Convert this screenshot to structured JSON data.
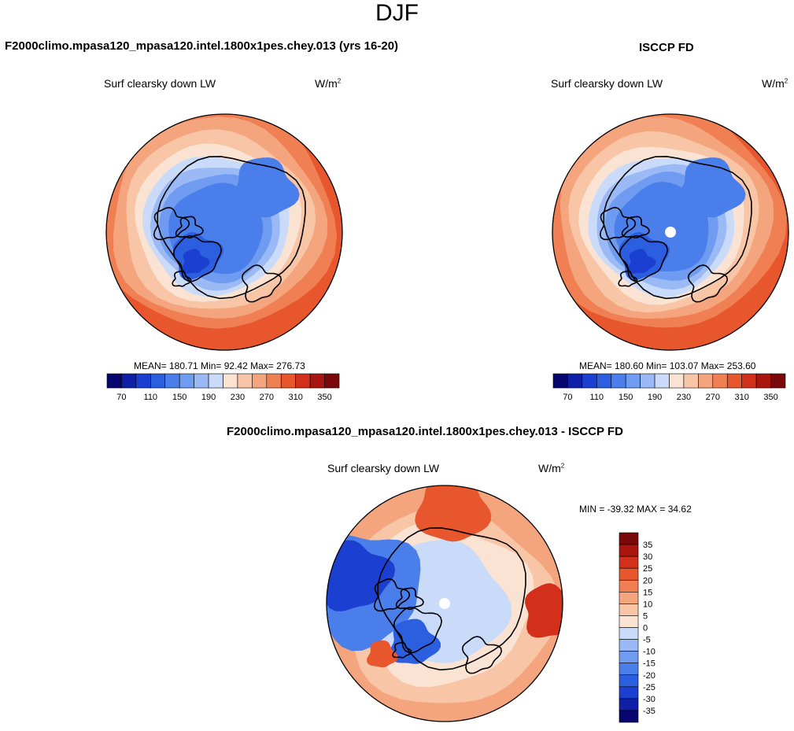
{
  "page": {
    "season": "DJF"
  },
  "panels": [
    {
      "id": "model",
      "title": "F2000climo.mpasa120_mpasa120.intel.1800x1pes.chey.013 (yrs 16-20)",
      "variable": "Surf clearsky down LW",
      "units_base": "W/m",
      "units_exp": "2",
      "stats_text": "MEAN= 180.71  Min=  92.42  Max= 276.73",
      "stats": {
        "mean": 180.71,
        "min": 92.42,
        "max": 276.73
      }
    },
    {
      "id": "obs",
      "title": "ISCCP FD",
      "variable": "Surf clearsky down LW",
      "units_base": "W/m",
      "units_exp": "2",
      "stats_text": "MEAN= 180.60  Min= 103.07  Max= 253.60",
      "stats": {
        "mean": 180.6,
        "min": 103.07,
        "max": 253.6
      }
    },
    {
      "id": "diff",
      "title": "F2000climo.mpasa120_mpasa120.intel.1800x1pes.chey.013 - ISCCP FD",
      "variable": "Surf clearsky down LW",
      "units_base": "W/m",
      "units_exp": "2",
      "stats_text": "MIN = -39.32 MAX =  34.62",
      "stats": {
        "min": -39.32,
        "max": 34.62
      }
    }
  ],
  "chart_data": [
    {
      "type": "heatmap",
      "projection": "north-polar-stereographic",
      "title": "F2000climo.mpasa120_mpasa120.intel.1800x1pes.chey.013 (yrs 16-20)",
      "variable": "Surf clearsky down LW",
      "units": "W/m2",
      "mean": 180.71,
      "min": 92.42,
      "max": 276.73,
      "colorbar": {
        "orientation": "horizontal",
        "levels": [
          70,
          90,
          110,
          130,
          150,
          170,
          190,
          210,
          230,
          250,
          270,
          290,
          310,
          330,
          350
        ],
        "tick_labels": [
          "70",
          "110",
          "150",
          "190",
          "230",
          "270",
          "310",
          "350"
        ],
        "colors": [
          "#06066e",
          "#0f1fa8",
          "#1b3fd0",
          "#2c5ee0",
          "#4a7eea",
          "#6f9cf0",
          "#9bbaf5",
          "#c9dbf9",
          "#fbe3d4",
          "#f8c6a7",
          "#f5a57e",
          "#f07f54",
          "#e8562e",
          "#d2301a",
          "#a9150f",
          "#7a0808"
        ]
      }
    },
    {
      "type": "heatmap",
      "projection": "north-polar-stereographic",
      "title": "ISCCP FD",
      "variable": "Surf clearsky down LW",
      "units": "W/m2",
      "mean": 180.6,
      "min": 103.07,
      "max": 253.6,
      "colorbar": {
        "orientation": "horizontal",
        "levels": [
          70,
          90,
          110,
          130,
          150,
          170,
          190,
          210,
          230,
          250,
          270,
          290,
          310,
          330,
          350
        ],
        "tick_labels": [
          "70",
          "110",
          "150",
          "190",
          "230",
          "270",
          "310",
          "350"
        ],
        "colors": [
          "#06066e",
          "#0f1fa8",
          "#1b3fd0",
          "#2c5ee0",
          "#4a7eea",
          "#6f9cf0",
          "#9bbaf5",
          "#c9dbf9",
          "#fbe3d4",
          "#f8c6a7",
          "#f5a57e",
          "#f07f54",
          "#e8562e",
          "#d2301a",
          "#a9150f",
          "#7a0808"
        ]
      }
    },
    {
      "type": "heatmap",
      "projection": "north-polar-stereographic",
      "title": "F2000climo.mpasa120_mpasa120.intel.1800x1pes.chey.013 - ISCCP FD",
      "variable": "Surf clearsky down LW",
      "units": "W/m2",
      "min": -39.32,
      "max": 34.62,
      "colorbar": {
        "orientation": "vertical",
        "levels": [
          35,
          30,
          25,
          20,
          15,
          10,
          5,
          0,
          -5,
          -10,
          -15,
          -20,
          -25,
          -30,
          -35
        ],
        "tick_labels": [
          "35",
          "30",
          "25",
          "20",
          "15",
          "10",
          "5",
          "0",
          "-5",
          "-10",
          "-15",
          "-20",
          "-25",
          "-30",
          "-35"
        ],
        "colors": [
          "#7a0808",
          "#a9150f",
          "#d2301a",
          "#e8562e",
          "#f07f54",
          "#f5a57e",
          "#f8c6a7",
          "#fbe3d4",
          "#c9dbf9",
          "#9bbaf5",
          "#6f9cf0",
          "#4a7eea",
          "#2c5ee0",
          "#1b3fd0",
          "#0f1fa8",
          "#06066e"
        ]
      }
    }
  ]
}
